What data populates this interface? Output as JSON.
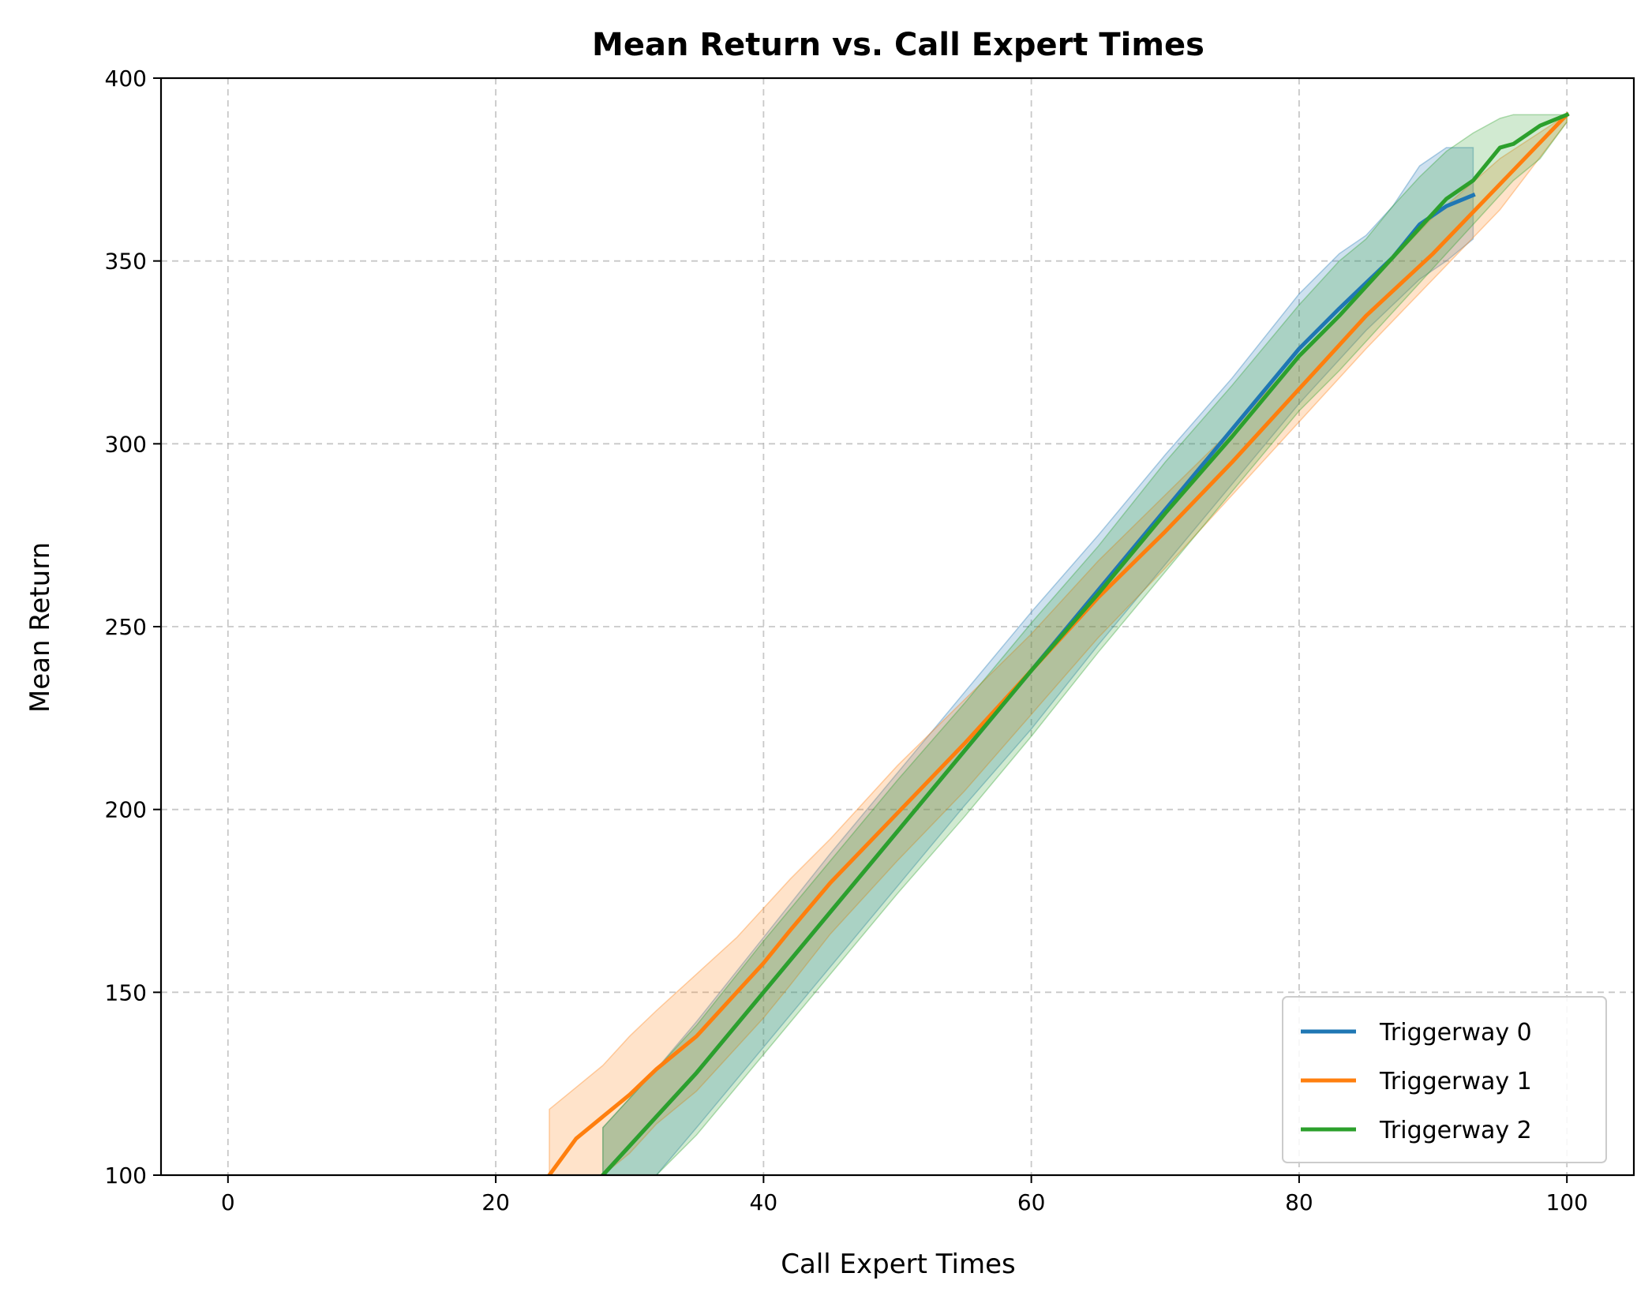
{
  "chart_data": {
    "type": "line",
    "title": "Mean Return vs. Call Expert Times",
    "xlabel": "Call Expert Times",
    "ylabel": "Mean Return",
    "xlim": [
      -5,
      105
    ],
    "ylim": [
      100,
      400
    ],
    "xticks": [
      0,
      20,
      40,
      60,
      80,
      100
    ],
    "yticks": [
      100,
      150,
      200,
      250,
      300,
      350,
      400
    ],
    "xtick_labels": [
      "0",
      "20",
      "40",
      "60",
      "80",
      "100"
    ],
    "ytick_labels": [
      "100",
      "150",
      "200",
      "250",
      "300",
      "350",
      "400"
    ],
    "grid": true,
    "legend_position": "lower-right",
    "series": [
      {
        "name": "Triggerway 0",
        "color": "#1f77b4",
        "x": [
          28,
          30,
          32,
          35,
          40,
          45,
          50,
          55,
          60,
          65,
          70,
          75,
          80,
          83,
          85,
          87,
          89,
          91,
          93
        ],
        "y": [
          100,
          108,
          116,
          128,
          150,
          172,
          194,
          216,
          238,
          260,
          282,
          304,
          326,
          337,
          344,
          351,
          360,
          365,
          368
        ],
        "upper": [
          113,
          121,
          129,
          142,
          165,
          188,
          210,
          232,
          254,
          275,
          297,
          318,
          341,
          352,
          357,
          365,
          376,
          381,
          381
        ],
        "lower": [
          100,
          100,
          100,
          113,
          135,
          157,
          179,
          201,
          222,
          245,
          267,
          289,
          311,
          323,
          331,
          338,
          345,
          350,
          356
        ]
      },
      {
        "name": "Triggerway 1",
        "color": "#ff7f0e",
        "x": [
          24,
          26,
          28,
          30,
          32,
          35,
          38,
          40,
          42,
          45,
          50,
          55,
          60,
          65,
          70,
          75,
          80,
          85,
          90,
          95,
          100
        ],
        "y": [
          100,
          110,
          116,
          122,
          129,
          138,
          150,
          158,
          167,
          180,
          199,
          218,
          238,
          258,
          276,
          295,
          315,
          335,
          352,
          371,
          390
        ],
        "upper": [
          118,
          124,
          130,
          138,
          145,
          155,
          165,
          173,
          181,
          192,
          212,
          230,
          248,
          268,
          286,
          304,
          324,
          343,
          362,
          378,
          390
        ],
        "lower": [
          100,
          100,
          100,
          106,
          114,
          123,
          135,
          143,
          152,
          166,
          186,
          205,
          226,
          247,
          266,
          286,
          306,
          326,
          345,
          364,
          388
        ]
      },
      {
        "name": "Triggerway 2",
        "color": "#2ca02c",
        "x": [
          28,
          30,
          32,
          35,
          40,
          45,
          50,
          55,
          60,
          65,
          70,
          75,
          80,
          83,
          85,
          87,
          89,
          91,
          93,
          95,
          96,
          98,
          100
        ],
        "y": [
          100,
          108,
          116,
          128,
          150,
          172,
          194,
          216,
          238,
          259,
          281,
          302,
          324,
          335,
          343,
          351,
          359,
          367,
          372,
          381,
          382,
          387,
          390
        ],
        "upper": [
          113,
          121,
          129,
          141,
          164,
          186,
          208,
          229,
          251,
          272,
          295,
          316,
          338,
          350,
          356,
          365,
          373,
          380,
          385,
          389,
          390,
          390,
          390
        ],
        "lower": [
          100,
          100,
          100,
          111,
          133,
          155,
          177,
          198,
          220,
          243,
          265,
          287,
          309,
          320,
          328,
          336,
          344,
          352,
          360,
          368,
          372,
          378,
          388
        ]
      }
    ]
  }
}
